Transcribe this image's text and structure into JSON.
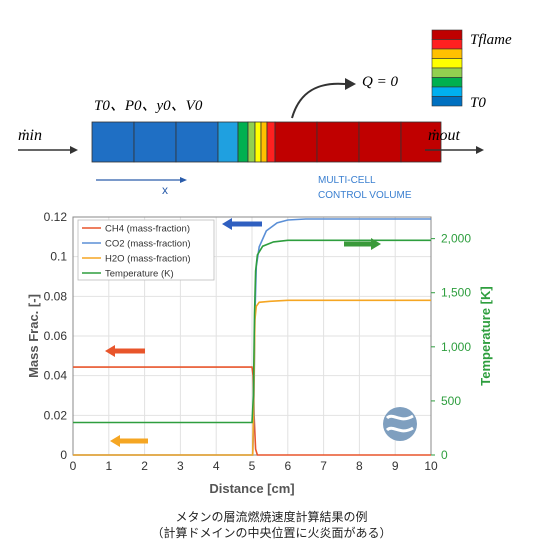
{
  "diagram": {
    "mdot_in": "ṁin",
    "mdot_out": "ṁout",
    "initial_conditions": "T0、P0、y0、V0",
    "heat_flux": "Q = 0",
    "x_label": "x",
    "multicell_line1": "MULTI-CELL",
    "multicell_line2": "CONTROL VOLUME",
    "legend_top_label": "Tflame",
    "legend_bottom_label": "T0",
    "colorbar_colors": [
      "#c00000",
      "#ff2020",
      "#ffc000",
      "#ffff00",
      "#92d050",
      "#00b050",
      "#00b0f0",
      "#0070c0"
    ],
    "cells_colors": [
      "#1f6fc4",
      "#1f6fc4",
      "#1f6fc4",
      "#1fa0e0",
      "#00b050",
      "#92d050",
      "#ffff00",
      "#ffc000",
      "#ff2020",
      "#c00000",
      "#c00000",
      "#c00000",
      "#c00000"
    ]
  },
  "chart_data": {
    "type": "line",
    "xlabel": "Distance [cm]",
    "ylabel_left": "Mass Frac. [-]",
    "ylabel_right": "Temperature [K]",
    "xlim": [
      0,
      10
    ],
    "ylim_left": [
      0,
      0.12
    ],
    "ylim_right": [
      0,
      2200
    ],
    "x_ticks": [
      "0",
      "1",
      "2",
      "3",
      "4",
      "5",
      "6",
      "7",
      "8",
      "9",
      "10"
    ],
    "y_ticks_left": [
      "0",
      "0.02",
      "0.04",
      "0.06",
      "0.08",
      "0.1",
      "0.12"
    ],
    "y_ticks_right": [
      "0",
      "500",
      "1,000",
      "1,500",
      "2,000"
    ],
    "grid": true,
    "legend_position": "top-left",
    "series": [
      {
        "name": "CH4 (mass-fraction)",
        "axis": "left",
        "color": "#e8552b",
        "x": [
          0,
          5.0,
          5.03,
          5.06,
          5.1,
          5.15,
          10
        ],
        "y": [
          0.0443,
          0.0443,
          0.04,
          0.02,
          0.003,
          0,
          0
        ]
      },
      {
        "name": "CO2 (mass-fraction)",
        "axis": "left",
        "color": "#5b8fd6",
        "x": [
          0,
          5.02,
          5.05,
          5.08,
          5.12,
          5.2,
          5.4,
          5.7,
          6.0,
          6.5,
          10
        ],
        "y": [
          0,
          0,
          0.02,
          0.07,
          0.095,
          0.105,
          0.113,
          0.117,
          0.1185,
          0.119,
          0.119
        ]
      },
      {
        "name": "H2O (mass-fraction)",
        "axis": "left",
        "color": "#f5a623",
        "x": [
          0,
          5.02,
          5.05,
          5.08,
          5.12,
          5.2,
          5.5,
          6.0,
          10
        ],
        "y": [
          0,
          0,
          0.03,
          0.068,
          0.075,
          0.077,
          0.0775,
          0.078,
          0.078
        ]
      },
      {
        "name": "Temperature (K)",
        "axis": "right",
        "color": "#2e9e3e",
        "x": [
          0,
          5.0,
          5.04,
          5.07,
          5.1,
          5.15,
          5.3,
          5.6,
          6.0,
          10
        ],
        "y": [
          300,
          300,
          550,
          1300,
          1700,
          1850,
          1930,
          1970,
          1985,
          1985
        ]
      }
    ],
    "arrow_colors": [
      "#2f5fc0",
      "#3a9a3a",
      "#e8552b",
      "#f5a623"
    ]
  },
  "caption": {
    "line1": "メタンの層流燃焼速度計算結果の例",
    "line2": "（計算ドメインの中央位置に火炎面がある）"
  }
}
